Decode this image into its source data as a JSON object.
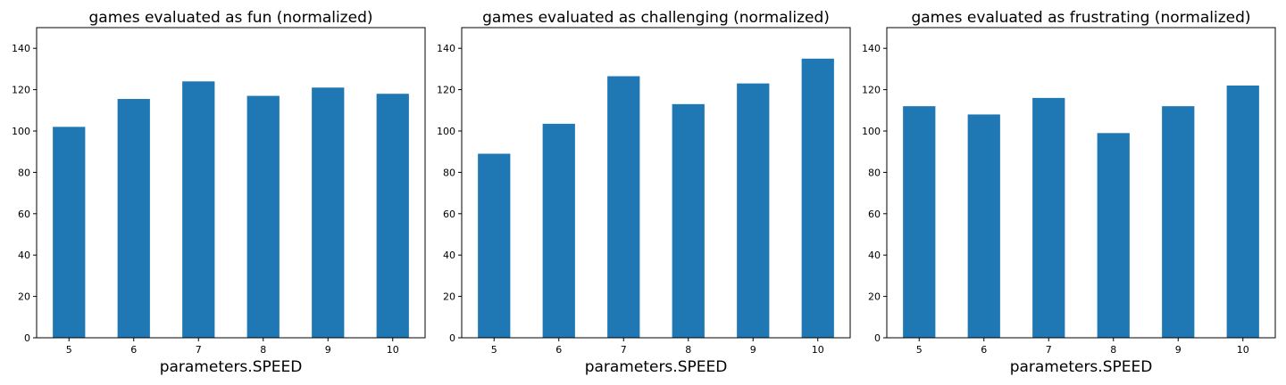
{
  "chart_data": [
    {
      "type": "bar",
      "title": "games evaluated as fun (normalized)",
      "xlabel": "parameters.SPEED",
      "ylabel": "",
      "categories": [
        "5",
        "6",
        "7",
        "8",
        "9",
        "10"
      ],
      "values": [
        102,
        115.5,
        124,
        117,
        121,
        118
      ],
      "ylim": [
        0,
        150
      ],
      "yticks": [
        0,
        20,
        40,
        60,
        80,
        100,
        120,
        140
      ],
      "color": "#1f77b4",
      "grid": false
    },
    {
      "type": "bar",
      "title": "games evaluated as challenging (normalized)",
      "xlabel": "parameters.SPEED",
      "ylabel": "",
      "categories": [
        "5",
        "6",
        "7",
        "8",
        "9",
        "10"
      ],
      "values": [
        89,
        103.5,
        126.5,
        113,
        123,
        135
      ],
      "ylim": [
        0,
        150
      ],
      "yticks": [
        0,
        20,
        40,
        60,
        80,
        100,
        120,
        140
      ],
      "color": "#1f77b4",
      "grid": false
    },
    {
      "type": "bar",
      "title": "games evaluated as frustrating (normalized)",
      "xlabel": "parameters.SPEED",
      "ylabel": "",
      "categories": [
        "5",
        "6",
        "7",
        "8",
        "9",
        "10"
      ],
      "values": [
        112,
        108,
        116,
        99,
        112,
        122
      ],
      "ylim": [
        0,
        150
      ],
      "yticks": [
        0,
        20,
        40,
        60,
        80,
        100,
        120,
        140
      ],
      "color": "#1f77b4",
      "grid": false
    }
  ]
}
